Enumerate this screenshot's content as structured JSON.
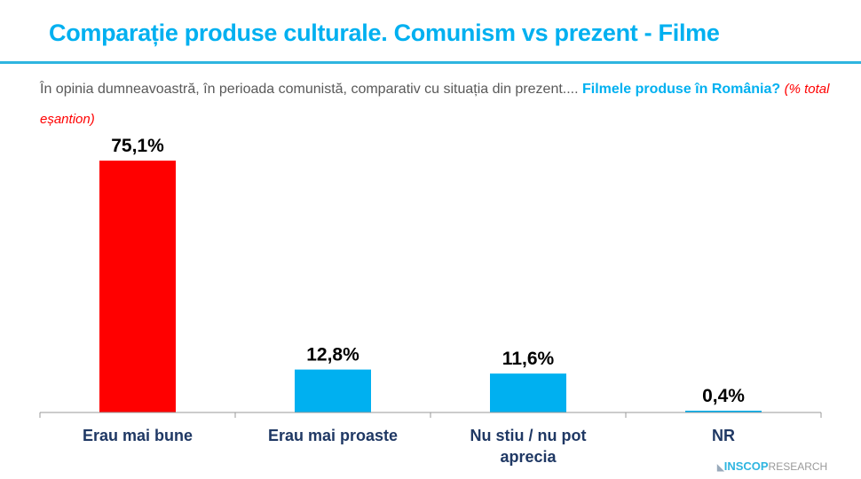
{
  "header": {
    "title": "Comparație produse culturale. Comunism vs prezent - Filme"
  },
  "question": {
    "text": "În opinia dumneavoastră, în perioada comunistă, comparativ cu situația din prezent.... ",
    "highlight": "Filmele produse în România?",
    "note": "(% total eșantion)"
  },
  "chart_data": {
    "type": "bar",
    "categories": [
      "Erau mai bune",
      "Erau mai proaste",
      "Nu stiu / nu pot aprecia",
      "NR"
    ],
    "values": [
      75.1,
      12.8,
      11.6,
      0.4
    ],
    "data_labels": [
      "75,1%",
      "12,8%",
      "11,6%",
      "0,4%"
    ],
    "colors": [
      "#ff0000",
      "#00b0f0",
      "#00b0f0",
      "#00b0f0"
    ],
    "ylim": [
      0,
      100
    ],
    "grid": false,
    "legend": "none"
  },
  "logo": {
    "brand": "INSCOP",
    "suffix": "RESEARCH"
  },
  "colors": {
    "accent": "#00b0f0",
    "highlight": "#ff0000",
    "category_label": "#1f3864"
  }
}
